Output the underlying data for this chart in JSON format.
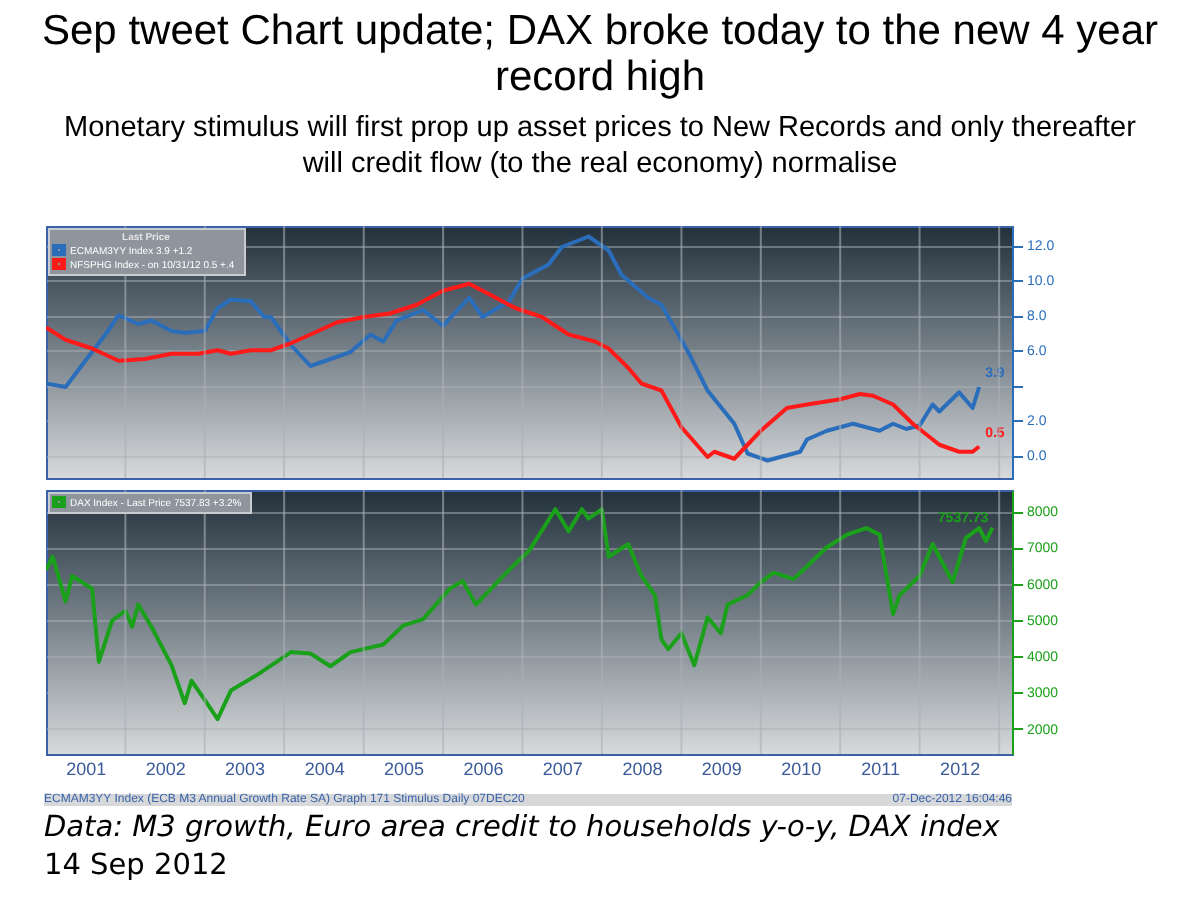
{
  "chart_data": [
    {
      "type": "line",
      "title": "Sep tweet Chart update; DAX broke today to the new 4 year record high",
      "subtitle": "Monetary stimulus will first prop up asset prices to New Records and only thereafter will credit flow (to the real economy) normalise",
      "legend": "top left",
      "legend_title": "Last Price",
      "grid": true,
      "tick_labels": "y",
      "xlim": [
        "2001-01",
        "2013-03"
      ],
      "ylim": [
        -1.3,
        13.1
      ],
      "xticks": [
        {
          "value": "2002-01",
          "label": null
        },
        {
          "value": "2003-01",
          "label": null
        },
        {
          "value": "2004-01",
          "label": null
        },
        {
          "value": "2005-01",
          "label": null
        },
        {
          "value": "2006-01",
          "label": null
        },
        {
          "value": "2007-01",
          "label": null
        },
        {
          "value": "2008-01",
          "label": null
        },
        {
          "value": "2009-01",
          "label": null
        },
        {
          "value": "2010-01",
          "label": null
        },
        {
          "value": "2011-01",
          "label": null
        },
        {
          "value": "2012-01",
          "label": null
        },
        {
          "value": "2013-01",
          "label": null
        }
      ],
      "yticks": [
        {
          "value": 0,
          "label": "0.0"
        },
        {
          "value": 2,
          "label": "2.0"
        },
        {
          "value": 4,
          "label": null
        },
        {
          "value": 6,
          "label": "6.0"
        },
        {
          "value": 8,
          "label": "8.0"
        },
        {
          "value": 10,
          "label": "10.0"
        },
        {
          "value": 12,
          "label": "12.0"
        }
      ],
      "series": [
        {
          "name": "ECMAM3YY Index   3.9  +1.2",
          "color": "#2a6ebb",
          "x": [
            "2001-01",
            "2001-04",
            "2001-07",
            "2001-10",
            "2001-12",
            "2002-03",
            "2002-05",
            "2002-08",
            "2002-10",
            "2003-01",
            "2003-03",
            "2003-05",
            "2003-08",
            "2003-10",
            "2003-11",
            "2004-02",
            "2004-05",
            "2004-08",
            "2004-11",
            "2005-02",
            "2005-04",
            "2005-06",
            "2005-10",
            "2006-01",
            "2006-05",
            "2006-07",
            "2006-11",
            "2007-01",
            "2007-05",
            "2007-07",
            "2007-11",
            "2008-02",
            "2008-04",
            "2008-08",
            "2008-10",
            "2009-02",
            "2009-05",
            "2009-09",
            "2009-11",
            "2010-02",
            "2010-04",
            "2010-07",
            "2010-08",
            "2010-11",
            "2011-03",
            "2011-07",
            "2011-09",
            "2011-11",
            "2012-01",
            "2012-03",
            "2012-04",
            "2012-07",
            "2012-09",
            "2012-10"
          ],
          "values": [
            4.1,
            3.9,
            5.4,
            6.9,
            8.0,
            7.5,
            7.7,
            7.1,
            7.0,
            7.1,
            8.4,
            8.9,
            8.8,
            7.9,
            7.9,
            6.3,
            5.1,
            5.5,
            5.9,
            6.9,
            6.5,
            7.7,
            8.3,
            7.4,
            9.0,
            7.9,
            8.8,
            10.1,
            10.9,
            11.9,
            12.5,
            11.7,
            10.3,
            9.0,
            8.6,
            5.9,
            3.7,
            1.8,
            0.1,
            -0.3,
            -0.1,
            0.2,
            0.9,
            1.4,
            1.8,
            1.4,
            1.8,
            1.5,
            1.7,
            2.9,
            2.5,
            3.6,
            2.7,
            3.9
          ]
        },
        {
          "name": "NFSPHG Index - on 10/31/12  0.5  +.4",
          "color": "#ff1a1a",
          "x": [
            "2001-01",
            "2001-04",
            "2001-08",
            "2001-12",
            "2002-04",
            "2002-08",
            "2002-12",
            "2003-03",
            "2003-05",
            "2003-08",
            "2003-11",
            "2004-02",
            "2004-05",
            "2004-09",
            "2005-01",
            "2005-05",
            "2005-09",
            "2006-01",
            "2006-05",
            "2006-08",
            "2006-12",
            "2007-04",
            "2007-08",
            "2007-12",
            "2008-02",
            "2008-05",
            "2008-07",
            "2008-10",
            "2009-01",
            "2009-05",
            "2009-06",
            "2009-09",
            "2010-01",
            "2010-05",
            "2010-08",
            "2011-01",
            "2011-04",
            "2011-06",
            "2011-09",
            "2011-12",
            "2012-04",
            "2012-07",
            "2012-09",
            "2012-10"
          ],
          "values": [
            7.3,
            6.6,
            6.1,
            5.4,
            5.5,
            5.8,
            5.8,
            6.0,
            5.8,
            6.0,
            6.0,
            6.4,
            6.9,
            7.6,
            7.9,
            8.1,
            8.6,
            9.4,
            9.8,
            9.2,
            8.4,
            7.9,
            6.9,
            6.5,
            6.1,
            5.0,
            4.1,
            3.7,
            1.6,
            -0.1,
            0.2,
            -0.2,
            1.4,
            2.7,
            2.9,
            3.2,
            3.5,
            3.4,
            2.9,
            1.8,
            0.6,
            0.2,
            0.2,
            0.5
          ]
        }
      ],
      "annotations": [
        {
          "text": "3.9",
          "x": "2012-10",
          "y": 3.9
        },
        {
          "text": "0.5",
          "x": "2012-10",
          "y": 0.5
        }
      ]
    },
    {
      "type": "line",
      "legend": "top left",
      "grid": true,
      "xlim": [
        "2001-01",
        "2013-03"
      ],
      "xticks": [
        {
          "value": "2001-07",
          "label": "2001"
        },
        {
          "value": "2002-07",
          "label": "2002"
        },
        {
          "value": "2003-07",
          "label": "2003"
        },
        {
          "value": "2004-07",
          "label": "2004"
        },
        {
          "value": "2005-07",
          "label": "2005"
        },
        {
          "value": "2006-07",
          "label": "2006"
        },
        {
          "value": "2007-07",
          "label": "2007"
        },
        {
          "value": "2008-07",
          "label": "2008"
        },
        {
          "value": "2009-07",
          "label": "2009"
        },
        {
          "value": "2010-07",
          "label": "2010"
        },
        {
          "value": "2011-07",
          "label": "2011"
        },
        {
          "value": "2012-07",
          "label": "2012"
        },
        {
          "value": "2002-01",
          "label": null
        },
        {
          "value": "2003-01",
          "label": null
        },
        {
          "value": "2004-01",
          "label": null
        },
        {
          "value": "2005-01",
          "label": null
        },
        {
          "value": "2006-01",
          "label": null
        },
        {
          "value": "2007-01",
          "label": null
        },
        {
          "value": "2008-01",
          "label": null
        },
        {
          "value": "2009-01",
          "label": null
        },
        {
          "value": "2010-01",
          "label": null
        },
        {
          "value": "2011-01",
          "label": null
        },
        {
          "value": "2012-01",
          "label": null
        },
        {
          "value": "2013-01",
          "label": null
        }
      ],
      "ylim": [
        1300,
        8580
      ],
      "yticks": [
        2000,
        3000,
        4000,
        5000,
        6000,
        7000,
        8000
      ],
      "series": [
        {
          "name": "DAX Index - Last Price 7537.83  +3.2%",
          "color": "#1aa01a",
          "x": [
            "2001-01",
            "2001-02",
            "2001-04",
            "2001-05",
            "2001-08",
            "2001-09",
            "2001-11",
            "2002-01",
            "2002-02",
            "2002-03",
            "2002-05",
            "2002-08",
            "2002-10",
            "2002-11",
            "2003-01",
            "2003-03",
            "2003-05",
            "2003-09",
            "2004-02",
            "2004-05",
            "2004-08",
            "2004-11",
            "2005-04",
            "2005-07",
            "2005-10",
            "2006-02",
            "2006-04",
            "2006-06",
            "2006-11",
            "2007-02",
            "2007-06",
            "2007-08",
            "2007-10",
            "2007-11",
            "2008-01",
            "2008-02",
            "2008-05",
            "2008-07",
            "2008-09",
            "2008-10",
            "2008-11",
            "2009-01",
            "2009-03",
            "2009-05",
            "2009-07",
            "2009-08",
            "2009-11",
            "2010-01",
            "2010-03",
            "2010-06",
            "2010-07",
            "2010-11",
            "2011-02",
            "2011-05",
            "2011-07",
            "2011-09",
            "2011-10",
            "2012-01",
            "2012-03",
            "2012-06",
            "2012-08",
            "2012-10",
            "2012-11",
            "2012-12"
          ],
          "values": [
            6380,
            6740,
            5510,
            6210,
            5860,
            3840,
            4980,
            5250,
            4810,
            5420,
            4810,
            3750,
            2700,
            3320,
            2790,
            2260,
            3050,
            3490,
            4110,
            4070,
            3720,
            4110,
            4320,
            4840,
            5020,
            5860,
            6070,
            5420,
            6380,
            6910,
            8050,
            7440,
            8050,
            7790,
            8050,
            6740,
            7090,
            6210,
            5680,
            4460,
            4190,
            4630,
            3750,
            5070,
            4630,
            5420,
            5680,
            6040,
            6300,
            6120,
            6300,
            7000,
            7350,
            7530,
            7350,
            5160,
            5680,
            6210,
            7090,
            6040,
            7260,
            7530,
            7170,
            7540
          ]
        }
      ],
      "annotations": [
        {
          "text": "7537.73",
          "x": "2012-12",
          "y": 7540
        },
        "ECMAM3YY Index (ECB M3 Annual Growth Rate SA) Graph 171 Stimulus  Daily 07DEC20",
        "07-Dec-2012 16:04:46",
        "Data: M3 growth, Euro area credit to households y-o-y,  DAX index",
        "14 Sep 2012"
      ]
    }
  ]
}
